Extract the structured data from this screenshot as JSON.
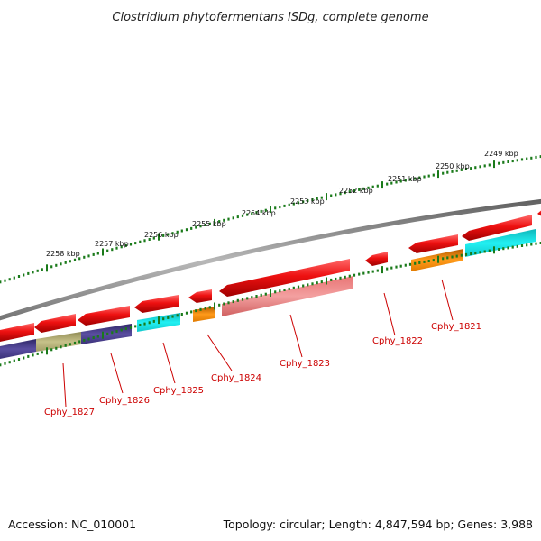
{
  "title": "Clostridium phytofermentans ISDg, complete genome",
  "footer": {
    "accession": "Accession: NC_010001",
    "summary": "Topology: circular; Length: 4,847,594 bp; Genes: 3,988"
  },
  "colors": {
    "backbone": "#8a8a8a",
    "tick": "#1a7a1a",
    "label": "#cc0000",
    "forward_gene": "#ee1111",
    "reverse_gene": "#f09090",
    "cyan_gene": "#19e6ea",
    "orange_gene": "#f28a0a",
    "navy_gene": "#4a3f8c",
    "olive_gene": "#b3ae74"
  },
  "scale": {
    "unit": "kbp",
    "labels": [
      "2258 kbp",
      "2257 kbp",
      "2256 kbp",
      "2255 kbp",
      "2254 kbp",
      "2253 kbp",
      "2252 kbp",
      "2251 kbp",
      "2250 kbp",
      "2249 kbp"
    ]
  },
  "gene_labels": [
    "Cphy_1827",
    "Cphy_1826",
    "Cphy_1825",
    "Cphy_1824",
    "Cphy_1823",
    "Cphy_1822",
    "Cphy_1821"
  ]
}
